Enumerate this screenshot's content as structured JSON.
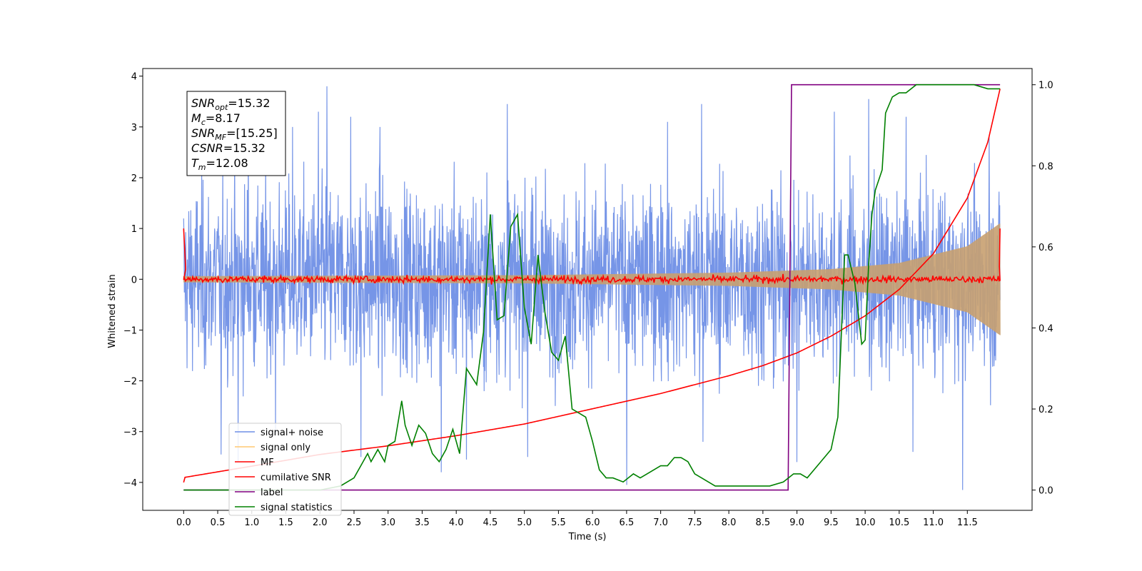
{
  "chart_data": {
    "type": "line",
    "xlabel": "Time (s)",
    "ylabel": "Whitened strain",
    "xlim": [
      -0.6,
      12.45
    ],
    "ylim": [
      -4.55,
      4.15
    ],
    "y2lim": [
      -0.05,
      1.04
    ],
    "xticks": [
      0.0,
      0.5,
      1.0,
      1.5,
      2.0,
      2.5,
      3.0,
      3.5,
      4.0,
      4.5,
      5.0,
      5.5,
      6.0,
      6.5,
      7.0,
      7.5,
      8.0,
      8.5,
      9.0,
      9.5,
      10.0,
      10.5,
      11.0,
      11.5
    ],
    "xtick_labels": [
      "0.0",
      "0.5",
      "1.0",
      "1.5",
      "2.0",
      "2.5",
      "3.0",
      "3.5",
      "4.0",
      "4.5",
      "5.0",
      "5.5",
      "6.0",
      "6.5",
      "7.0",
      "7.5",
      "8.0",
      "8.5",
      "9.0",
      "9.5",
      "10.0",
      "10.5",
      "11.0",
      "11.5"
    ],
    "yticks": [
      -4,
      -3,
      -2,
      -1,
      0,
      1,
      2,
      3,
      4
    ],
    "ytick_labels": [
      "−4",
      "−3",
      "−2",
      "−1",
      "0",
      "1",
      "2",
      "3",
      "4"
    ],
    "y2ticks": [
      0.0,
      0.2,
      0.4,
      0.6,
      0.8,
      1.0
    ],
    "y2tick_labels": [
      "0.0",
      "0.2",
      "0.4",
      "0.6",
      "0.8",
      "1.0"
    ],
    "legend_position": "lower-left",
    "legend": [
      {
        "label": "signal+ noise",
        "color": "#6f8fe6"
      },
      {
        "label": "signal only",
        "color": "#ffc870"
      },
      {
        "label": "MF",
        "color": "#ff0000"
      },
      {
        "label": "cumilative SNR",
        "color": "#ff0000"
      },
      {
        "label": "label",
        "color": "#800080"
      },
      {
        "label": "signal statistics",
        "color": "#008000"
      }
    ],
    "annotation": [
      {
        "base": "SNR",
        "sub": "opt",
        "rest": "=15.32"
      },
      {
        "base": "M",
        "sub": "c",
        "rest": "=8.17"
      },
      {
        "base": "SNR",
        "sub": "MF",
        "rest": "=[15.25]"
      },
      {
        "base": "CSNR",
        "sub": "",
        "rest": "=15.32"
      },
      {
        "base": "T",
        "sub": "m",
        "rest": "=12.08"
      }
    ],
    "series": [
      {
        "name": "signal+ noise",
        "axis": "left",
        "color": "#6f8fe6",
        "x_range": [
          0.0,
          11.98
        ],
        "spread": 1.0,
        "typical_max": 2.6,
        "peaks": [
          {
            "x": 0.55,
            "y": 3.5
          },
          {
            "x": 0.95,
            "y": 3.15
          },
          {
            "x": 1.6,
            "y": 3.0
          },
          {
            "x": 1.98,
            "y": 3.3
          },
          {
            "x": 2.1,
            "y": 3.8
          },
          {
            "x": 2.45,
            "y": 3.2
          },
          {
            "x": 2.88,
            "y": 3.0
          },
          {
            "x": 4.75,
            "y": 3.45
          },
          {
            "x": 7.1,
            "y": 3.1
          },
          {
            "x": 7.6,
            "y": 3.45
          },
          {
            "x": 9.55,
            "y": 3.3
          },
          {
            "x": 10.05,
            "y": 3.55
          },
          {
            "x": 10.6,
            "y": 3.2
          },
          {
            "x": 11.82,
            "y": 2.8
          }
        ],
        "troughs": [
          {
            "x": 0.55,
            "y": -3.45
          },
          {
            "x": 0.8,
            "y": -3.6
          },
          {
            "x": 1.35,
            "y": -3.05
          },
          {
            "x": 2.6,
            "y": -3.5
          },
          {
            "x": 3.78,
            "y": -3.8
          },
          {
            "x": 4.15,
            "y": -3.55
          },
          {
            "x": 5.05,
            "y": -3.5
          },
          {
            "x": 6.5,
            "y": -4.05
          },
          {
            "x": 7.62,
            "y": -3.2
          },
          {
            "x": 9.0,
            "y": -3.6
          },
          {
            "x": 10.7,
            "y": -3.4
          },
          {
            "x": 11.43,
            "y": -4.15
          }
        ]
      },
      {
        "name": "signal only",
        "axis": "left",
        "color": "#ffc870",
        "x_range": [
          0.0,
          11.98
        ],
        "envelope": [
          [
            0.0,
            0.06
          ],
          [
            5.0,
            0.08
          ],
          [
            8.0,
            0.13
          ],
          [
            9.5,
            0.2
          ],
          [
            10.5,
            0.32
          ],
          [
            11.5,
            0.65
          ],
          [
            11.98,
            1.1
          ]
        ]
      },
      {
        "name": "MF",
        "axis": "left",
        "color": "#ff0000",
        "x_range": [
          0.0,
          11.98
        ],
        "noise": 0.06,
        "spikes": [
          {
            "x": 0.0,
            "y": 1.0
          },
          {
            "x": 11.98,
            "y": 1.0
          }
        ]
      },
      {
        "name": "cumilative SNR",
        "axis": "left",
        "color": "#ff0000",
        "x": [
          0.0,
          0.02,
          1.0,
          2.0,
          3.0,
          4.0,
          5.0,
          6.0,
          7.0,
          8.0,
          8.5,
          9.0,
          9.5,
          10.0,
          10.5,
          11.0,
          11.5,
          11.8,
          11.98
        ],
        "y": [
          -4.0,
          -3.9,
          -3.68,
          -3.45,
          -3.28,
          -3.08,
          -2.85,
          -2.55,
          -2.25,
          -1.9,
          -1.7,
          -1.45,
          -1.12,
          -0.72,
          -0.2,
          0.5,
          1.6,
          2.7,
          3.75
        ]
      },
      {
        "name": "label",
        "axis": "right",
        "color": "#800080",
        "x": [
          0.0,
          8.87,
          8.92,
          11.98
        ],
        "y": [
          0.0,
          0.0,
          1.0,
          1.0
        ]
      },
      {
        "name": "signal statistics",
        "axis": "right",
        "color": "#008000",
        "x": [
          0.0,
          0.5,
          1.0,
          1.5,
          2.0,
          2.3,
          2.5,
          2.7,
          2.75,
          2.85,
          2.95,
          3.0,
          3.1,
          3.2,
          3.25,
          3.35,
          3.45,
          3.55,
          3.65,
          3.75,
          3.85,
          3.95,
          4.05,
          4.15,
          4.3,
          4.4,
          4.5,
          4.6,
          4.7,
          4.8,
          4.9,
          5.0,
          5.1,
          5.2,
          5.3,
          5.4,
          5.5,
          5.6,
          5.7,
          5.8,
          5.9,
          6.0,
          6.1,
          6.2,
          6.3,
          6.45,
          6.6,
          6.7,
          6.8,
          7.0,
          7.1,
          7.2,
          7.3,
          7.4,
          7.5,
          7.6,
          7.8,
          8.0,
          8.3,
          8.6,
          8.8,
          8.95,
          9.05,
          9.15,
          9.25,
          9.35,
          9.5,
          9.6,
          9.7,
          9.75,
          9.85,
          9.95,
          10.0,
          10.05,
          10.1,
          10.15,
          10.25,
          10.3,
          10.4,
          10.5,
          10.6,
          10.75,
          11.0,
          11.3,
          11.6,
          11.8,
          11.98
        ],
        "y": [
          0.0,
          0.0,
          0.0,
          0.0,
          0.0,
          0.01,
          0.03,
          0.09,
          0.07,
          0.1,
          0.07,
          0.11,
          0.12,
          0.22,
          0.16,
          0.11,
          0.16,
          0.14,
          0.09,
          0.07,
          0.1,
          0.15,
          0.09,
          0.3,
          0.26,
          0.39,
          0.68,
          0.42,
          0.43,
          0.65,
          0.68,
          0.45,
          0.36,
          0.58,
          0.44,
          0.34,
          0.32,
          0.38,
          0.2,
          0.19,
          0.18,
          0.12,
          0.05,
          0.03,
          0.03,
          0.02,
          0.04,
          0.03,
          0.04,
          0.06,
          0.06,
          0.08,
          0.08,
          0.07,
          0.04,
          0.03,
          0.01,
          0.01,
          0.01,
          0.01,
          0.02,
          0.04,
          0.04,
          0.03,
          0.05,
          0.07,
          0.1,
          0.18,
          0.58,
          0.58,
          0.51,
          0.36,
          0.37,
          0.55,
          0.68,
          0.74,
          0.79,
          0.93,
          0.97,
          0.98,
          0.98,
          1.0,
          1.0,
          1.0,
          1.0,
          0.99,
          0.99
        ]
      }
    ]
  }
}
